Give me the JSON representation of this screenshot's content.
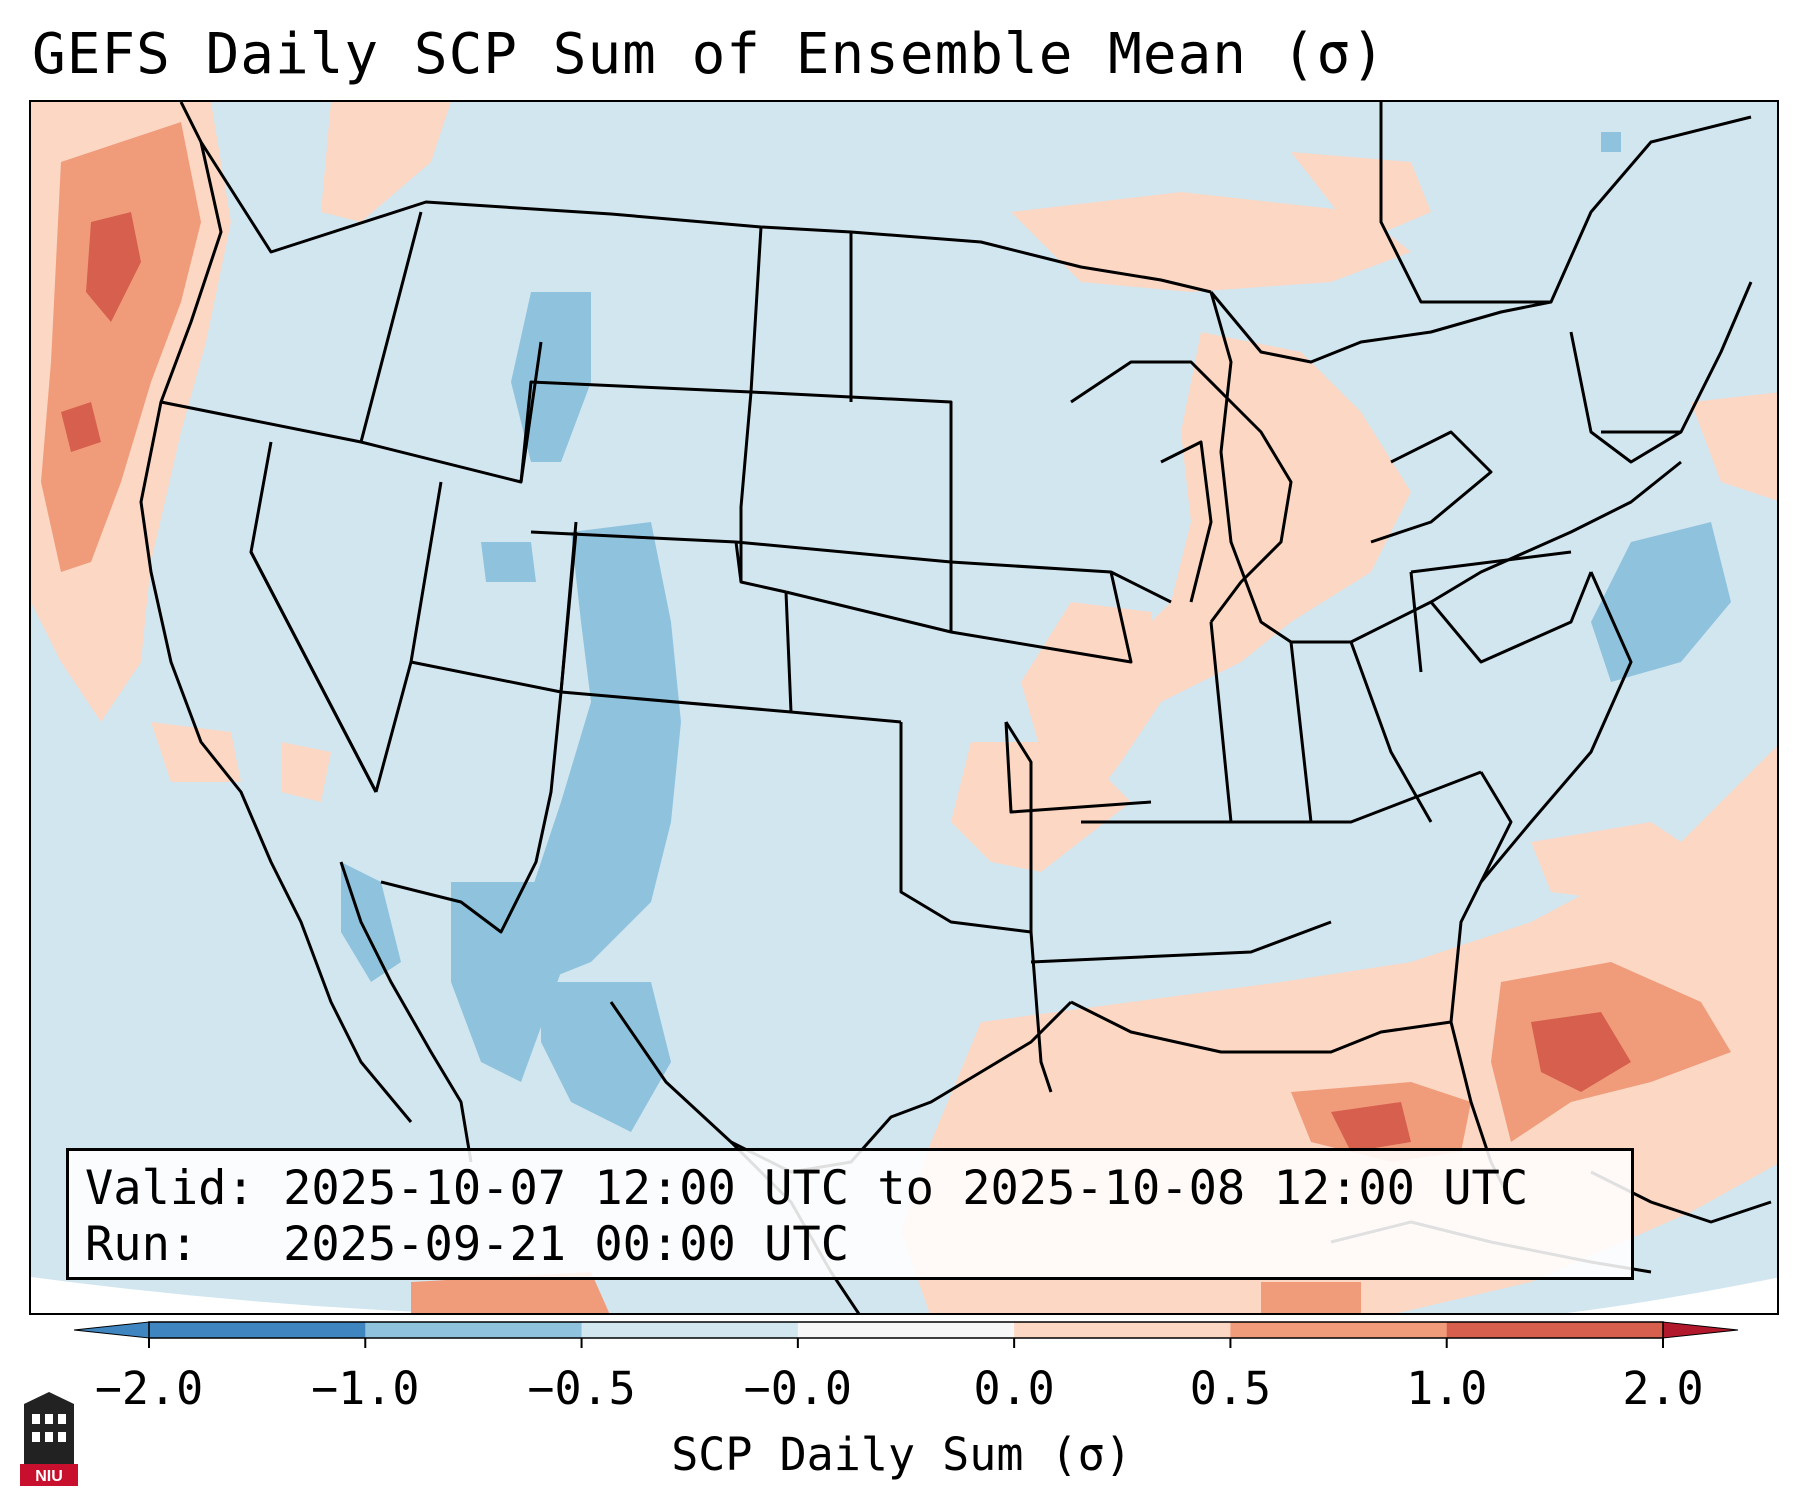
{
  "title": "GEFS Daily SCP Sum of Ensemble Mean (σ)",
  "info": {
    "valid_label": "Valid:",
    "valid_value": "2025-10-07 12:00 UTC to 2025-10-08 12:00 UTC",
    "run_label": "Run:",
    "run_value": "2025-09-21 00:00 UTC"
  },
  "colorbar": {
    "label": "SCP Daily Sum (σ)",
    "ticks": [
      "−2.0",
      "−1.0",
      "−0.5",
      "−0.0",
      "0.0",
      "0.5",
      "1.0",
      "2.0"
    ],
    "colors": [
      "#3f86c0",
      "#8fc3dd",
      "#d2e6f0",
      "#f7f7f7",
      "#fbd7c4",
      "#f09c7b",
      "#d6604d",
      "#b2182b"
    ]
  },
  "logo": {
    "text": "NIU"
  }
}
